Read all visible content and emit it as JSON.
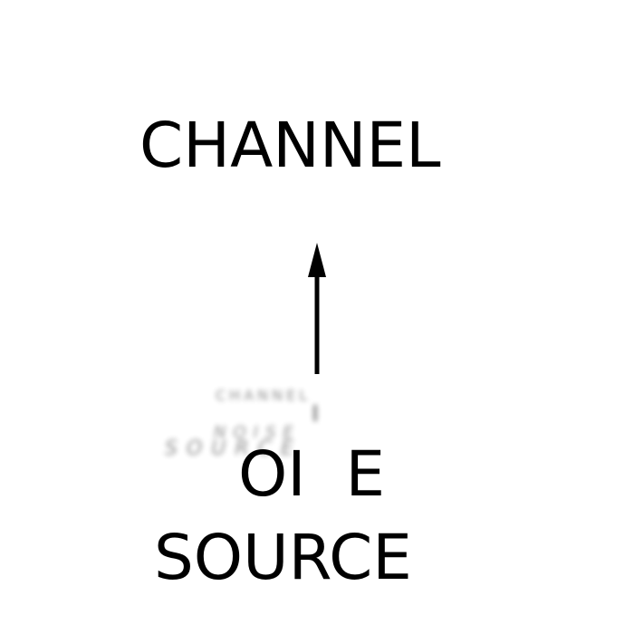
{
  "diagram": {
    "top_node": {
      "label": "CHANNEL"
    },
    "bottom_node": {
      "line1": "OI  E",
      "line2": "SOURCE"
    },
    "edge": {
      "direction": "up",
      "from": "bottom_node",
      "to": "top_node"
    },
    "ghost_overlay": {
      "label_top": "CHANNEL",
      "label_mid": "NOISE",
      "label_bottom": "SOURCE"
    },
    "colors": {
      "text": "#000000",
      "arrow": "#000000",
      "background": "#ffffff"
    }
  }
}
